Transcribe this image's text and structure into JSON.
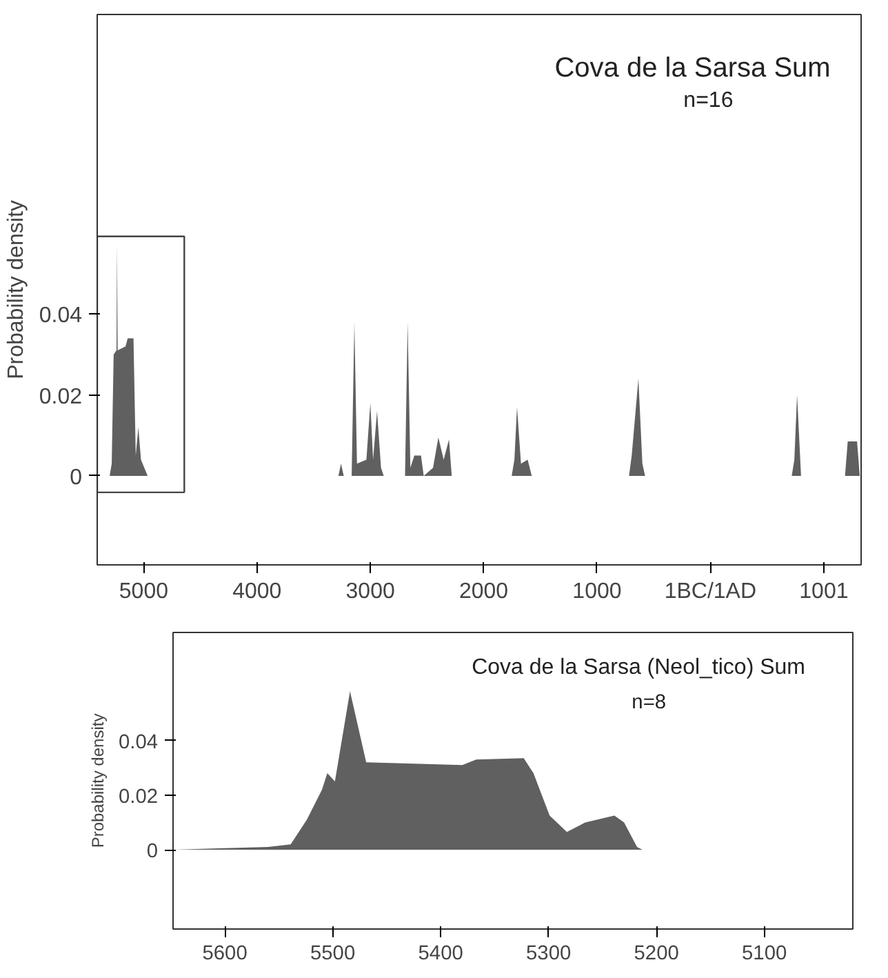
{
  "chart_data": [
    {
      "type": "area",
      "title": "Cova de la Sarsa Sum",
      "subtitle": "n=16",
      "ylabel": "Probability density",
      "x": [
        -5300,
        -5282,
        -5265,
        -5240,
        -5235,
        -5230,
        -5160,
        -5141,
        -5090,
        -5070,
        -5047,
        -5024,
        -4965,
        -3282,
        -3259,
        -3235,
        -3165,
        -3141,
        -3118,
        -3035,
        -3000,
        -2976,
        -2941,
        -2906,
        -2882,
        -2694,
        -2671,
        -2647,
        -2612,
        -2553,
        -2529,
        -2447,
        -2400,
        -2353,
        -2306,
        -2282,
        -1753,
        -1729,
        -1706,
        -1671,
        -1612,
        -1576,
        -718,
        -694,
        -635,
        -600,
        -576,
        718,
        741,
        765,
        800,
        1188,
        1212,
        1294,
        1318
      ],
      "series": [
        {
          "color": "#606060",
          "values": [
            0,
            0.003,
            0.03,
            0.031,
            0.057,
            0.031,
            0.032,
            0.034,
            0.034,
            0.005,
            0.012,
            0.004,
            0,
            0,
            0.003,
            0,
            0,
            0.038,
            0.003,
            0.004,
            0.018,
            0.004,
            0.016,
            0.002,
            0,
            0,
            0.038,
            0.002,
            0.005,
            0.005,
            0,
            0.002,
            0.0095,
            0.004,
            0.009,
            0,
            0,
            0.004,
            0.017,
            0.003,
            0.004,
            0,
            0,
            0.005,
            0.024,
            0.003,
            0,
            0,
            0.004,
            0.02,
            0,
            0,
            0.0085,
            0.0085,
            0
          ]
        }
      ],
      "xlim": [
        -5410,
        1330
      ],
      "ylim": [
        -0.022,
        0.114
      ],
      "xticks": [
        {
          "value": -5000,
          "label": "5000"
        },
        {
          "value": -4000,
          "label": "4000"
        },
        {
          "value": -3000,
          "label": "3000"
        },
        {
          "value": -2000,
          "label": "2000"
        },
        {
          "value": -1000,
          "label": "1000"
        },
        {
          "value": 0,
          "label": "1BC/1AD"
        },
        1001
      ],
      "yticks": [
        0,
        0.02,
        0.04
      ]
    },
    {
      "type": "area",
      "title": "Cova de la Sarsa (Neol_tico) Sum",
      "subtitle": "n=8",
      "ylabel": "Probability density",
      "x": [
        -5648,
        -5606,
        -5560,
        -5539,
        -5524,
        -5510,
        -5505,
        -5498,
        -5484,
        -5469,
        -5380,
        -5367,
        -5323,
        -5314,
        -5299,
        -5283,
        -5266,
        -5239,
        -5230,
        -5218,
        -5213,
        -5022
      ],
      "series": [
        {
          "color": "#606060",
          "values": [
            0,
            0.0005,
            0.001,
            0.002,
            0.011,
            0.022,
            0.028,
            0.025,
            0.058,
            0.032,
            0.031,
            0.033,
            0.0335,
            0.028,
            0.0125,
            0.0065,
            0.01,
            0.0125,
            0.01,
            0.001,
            0,
            0
          ]
        }
      ],
      "xlim": [
        -5648,
        -5018
      ],
      "ylim": [
        -0.029,
        0.0795
      ],
      "xticks": [
        {
          "value": -5600,
          "label": "5600"
        },
        {
          "value": -5500,
          "label": "5500"
        },
        {
          "value": -5400,
          "label": "5400"
        },
        {
          "value": -5300,
          "label": "5300"
        },
        {
          "value": -5200,
          "label": "5200"
        },
        {
          "value": -5100,
          "label": "5100"
        }
      ],
      "yticks": [
        0,
        0.02,
        0.04
      ]
    }
  ]
}
